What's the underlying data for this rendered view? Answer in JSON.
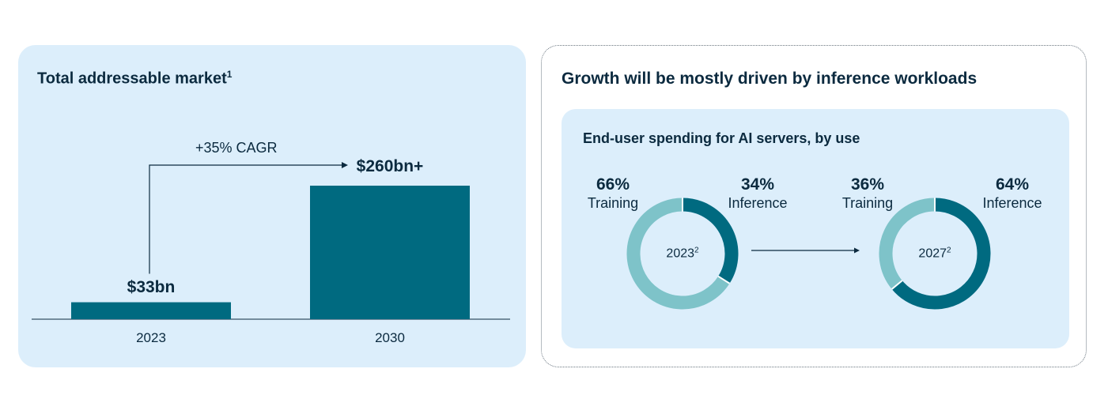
{
  "tam": {
    "title": "Total addressable market",
    "title_footnote": "1",
    "cagr_label": "+35% CAGR"
  },
  "growth": {
    "title": "Growth will be mostly driven by inference workloads",
    "subtitle": "End-user spending for AI servers, by use"
  },
  "colors": {
    "dark_teal": "#006a80",
    "light_teal": "#7ec3c9",
    "panel_bg": "#dceefb",
    "text": "#0b2a3f"
  },
  "chart_data": [
    {
      "type": "bar",
      "title": "Total addressable market",
      "categories": [
        "2023",
        "2030"
      ],
      "values": [
        33,
        260
      ],
      "value_labels": [
        "$33bn",
        "$260bn+"
      ],
      "unit": "$bn",
      "annotation": "+35% CAGR",
      "ylim": [
        0,
        270
      ]
    },
    {
      "type": "pie",
      "title": "End-user spending for AI servers, by use",
      "donuts": [
        {
          "year": "2023",
          "footnote": "2",
          "slices": [
            {
              "name": "Training",
              "value": 66,
              "label": "66%"
            },
            {
              "name": "Inference",
              "value": 34,
              "label": "34%"
            }
          ]
        },
        {
          "year": "2027",
          "footnote": "2",
          "slices": [
            {
              "name": "Training",
              "value": 36,
              "label": "36%"
            },
            {
              "name": "Inference",
              "value": 64,
              "label": "64%"
            }
          ]
        }
      ]
    }
  ]
}
